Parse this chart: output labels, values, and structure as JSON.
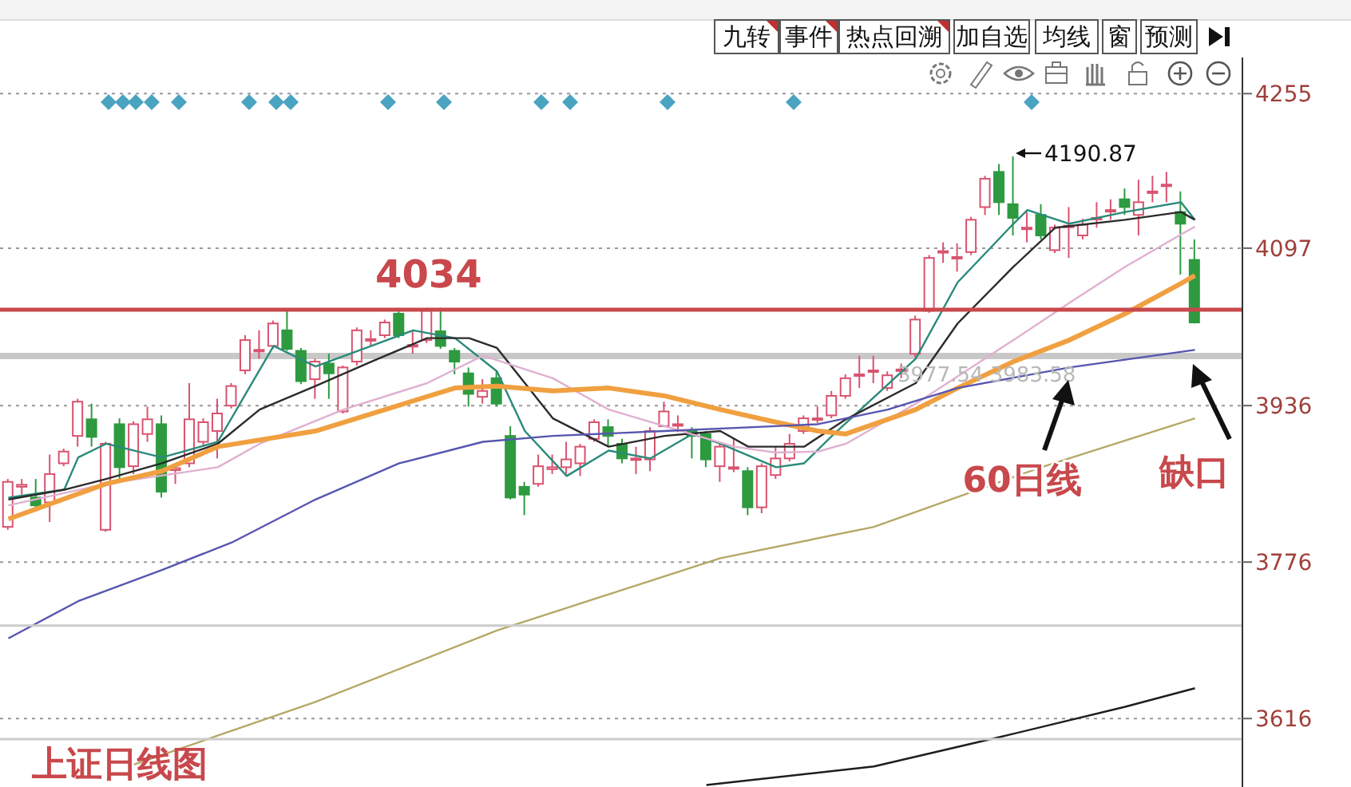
{
  "chart_data": {
    "type": "candlestick",
    "title": "上证日线图",
    "categories": [
      null,
      null,
      null,
      null,
      null,
      null,
      null,
      null,
      null,
      null,
      null,
      null,
      null,
      null,
      null,
      null,
      null,
      null,
      null,
      null,
      null,
      null,
      null,
      null,
      null,
      null,
      null,
      null,
      null,
      null,
      null,
      null,
      null,
      null,
      null,
      null,
      null,
      null,
      null,
      null,
      null,
      null,
      null,
      null,
      null,
      null,
      null,
      null,
      null,
      null,
      null,
      null,
      null,
      null,
      null,
      null,
      null,
      null,
      null,
      null,
      null,
      null,
      null,
      null,
      null,
      null,
      null,
      null,
      null,
      null,
      null,
      null,
      null,
      null,
      null,
      null,
      null,
      null,
      null,
      null,
      null,
      null,
      null,
      null,
      null,
      null
    ],
    "ohlc": [
      [
        3812,
        3861,
        3809,
        3858
      ],
      [
        3853,
        3861,
        3845,
        3855
      ],
      [
        3842,
        3861,
        3832,
        3834
      ],
      [
        3837,
        3886,
        3817,
        3866
      ],
      [
        3877,
        3892,
        3874,
        3889
      ],
      [
        3905,
        3943,
        3894,
        3940
      ],
      [
        3922,
        3938,
        3894,
        3904
      ],
      [
        3809,
        3899,
        3807,
        3897
      ],
      [
        3917,
        3923,
        3861,
        3873
      ],
      [
        3874,
        3920,
        3866,
        3917
      ],
      [
        3907,
        3935,
        3899,
        3922
      ],
      [
        3917,
        3926,
        3842,
        3848
      ],
      [
        3870,
        3877,
        3856,
        3872
      ],
      [
        3877,
        3959,
        3873,
        3922
      ],
      [
        3899,
        3923,
        3894,
        3919
      ],
      [
        3910,
        3943,
        3882,
        3928
      ],
      [
        3936,
        3959,
        3933,
        3956
      ],
      [
        3972,
        4008,
        3968,
        4003
      ],
      [
        3992,
        4013,
        3984,
        3993
      ],
      [
        3997,
        4023,
        3994,
        4020
      ],
      [
        4013,
        4033,
        3992,
        3994
      ],
      [
        3992,
        3995,
        3958,
        3961
      ],
      [
        3963,
        3984,
        3943,
        3981
      ],
      [
        3979,
        3989,
        3943,
        3969
      ],
      [
        3930,
        3977,
        3928,
        3975
      ],
      [
        3981,
        4016,
        3977,
        4013
      ],
      [
        4003,
        4013,
        3997,
        4004
      ],
      [
        4008,
        4024,
        4005,
        4021
      ],
      [
        4030,
        4036,
        4005,
        4008
      ],
      [
        3997,
        4012,
        3989,
        3998
      ],
      [
        4003,
        4036,
        4000,
        4033
      ],
      [
        4012,
        4036,
        3994,
        3997
      ],
      [
        3992,
        3995,
        3968,
        3981
      ],
      [
        3969,
        3975,
        3935,
        3948
      ],
      [
        3945,
        3963,
        3938,
        3951
      ],
      [
        3964,
        3971,
        3935,
        3938
      ],
      [
        3905,
        3915,
        3840,
        3842
      ],
      [
        3853,
        3858,
        3824,
        3845
      ],
      [
        3856,
        3886,
        3853,
        3874
      ],
      [
        3871,
        3886,
        3866,
        3873
      ],
      [
        3873,
        3899,
        3866,
        3881
      ],
      [
        3877,
        3897,
        3864,
        3894
      ],
      [
        3902,
        3922,
        3899,
        3919
      ],
      [
        3914,
        3922,
        3894,
        3905
      ],
      [
        3897,
        3902,
        3877,
        3882
      ],
      [
        3881,
        3894,
        3866,
        3882
      ],
      [
        3881,
        3914,
        3869,
        3910
      ],
      [
        3915,
        3940,
        3914,
        3930
      ],
      [
        3916,
        3926,
        3909,
        3917
      ],
      [
        3910,
        3914,
        3882,
        3905
      ],
      [
        3907,
        3910,
        3873,
        3881
      ],
      [
        3874,
        3897,
        3858,
        3894
      ],
      [
        3872,
        3902,
        3868,
        3873
      ],
      [
        3869,
        3873,
        3824,
        3832
      ],
      [
        3832,
        3877,
        3826,
        3874
      ],
      [
        3865,
        3894,
        3861,
        3882
      ],
      [
        3882,
        3907,
        3879,
        3897
      ],
      [
        3910,
        3926,
        3907,
        3923
      ],
      [
        3922,
        3935,
        3918,
        3923
      ],
      [
        3926,
        3951,
        3923,
        3946
      ],
      [
        3946,
        3968,
        3943,
        3964
      ],
      [
        3967,
        3987,
        3954,
        3968
      ],
      [
        3971,
        3987,
        3959,
        3972
      ],
      [
        3954,
        3971,
        3951,
        3967
      ],
      [
        3972,
        3979,
        3964,
        3973
      ],
      [
        3989,
        4028,
        3985,
        4024
      ],
      [
        4033,
        4090,
        4031,
        4087
      ],
      [
        4093,
        4103,
        4082,
        4094
      ],
      [
        4087,
        4102,
        4073,
        4088
      ],
      [
        4093,
        4129,
        4090,
        4126
      ],
      [
        4139,
        4171,
        4131,
        4168
      ],
      [
        4175,
        4183,
        4131,
        4144
      ],
      [
        4142,
        4190.87,
        4110,
        4128
      ],
      [
        4117,
        4134,
        4103,
        4118
      ],
      [
        4131,
        4142,
        4106,
        4110
      ],
      [
        4095,
        4121,
        4092,
        4118
      ],
      [
        4119,
        4139,
        4087,
        4120
      ],
      [
        4110,
        4127,
        4106,
        4121
      ],
      [
        4127,
        4144,
        4118,
        4128
      ],
      [
        4135,
        4147,
        4126,
        4136
      ],
      [
        4147,
        4158,
        4131,
        4139
      ],
      [
        4131,
        4167,
        4110,
        4144
      ],
      [
        4154,
        4171,
        4144,
        4155
      ],
      [
        4161,
        4175,
        4144,
        4162
      ],
      [
        4134,
        4155,
        4070,
        4122
      ],
      [
        4085,
        4106,
        4020,
        4021
      ]
    ],
    "colors": [
      "#d9536f",
      "#d9536f",
      "#2e9a40",
      "#d9536f",
      "#d9536f",
      "#d9536f",
      "#2e9a40",
      "#d9536f",
      "#2e9a40",
      "#d9536f",
      "#d9536f",
      "#2e9a40",
      "#d9536f",
      "#d9536f",
      "#d9536f",
      "#d9536f",
      "#d9536f",
      "#d9536f",
      "#d9536f",
      "#d9536f",
      "#2e9a40",
      "#2e9a40",
      "#d9536f",
      "#2e9a40",
      "#d9536f",
      "#d9536f",
      "#d9536f",
      "#d9536f",
      "#2e9a40",
      "#d9536f",
      "#d9536f",
      "#2e9a40",
      "#2e9a40",
      "#2e9a40",
      "#d9536f",
      "#2e9a40",
      "#2e9a40",
      "#2e9a40",
      "#d9536f",
      "#d9536f",
      "#d9536f",
      "#d9536f",
      "#d9536f",
      "#2e9a40",
      "#2e9a40",
      "#d9536f",
      "#d9536f",
      "#d9536f",
      "#d9536f",
      "#2e9a40",
      "#2e9a40",
      "#d9536f",
      "#d9536f",
      "#2e9a40",
      "#d9536f",
      "#d9536f",
      "#d9536f",
      "#d9536f",
      "#d9536f",
      "#d9536f",
      "#d9536f",
      "#d9536f",
      "#d9536f",
      "#d9536f",
      "#d9536f",
      "#d9536f",
      "#d9536f",
      "#d9536f",
      "#d9536f",
      "#d9536f",
      "#d9536f",
      "#2e9a40",
      "#2e9a40",
      "#d9536f",
      "#2e9a40",
      "#d9536f",
      "#d9536f",
      "#d9536f",
      "#d9536f",
      "#d9536f",
      "#2e9a40",
      "#d9536f",
      "#d9536f",
      "#d9536f",
      "#2e9a40",
      "#2e9a40"
    ],
    "series": [
      {
        "type": "line",
        "color": "#2a8a7a",
        "values": [
          3842,
          null,
          null,
          null,
          3850,
          3883,
          null,
          3897,
          null,
          null,
          null,
          3883,
          null,
          null,
          null,
          3899,
          null,
          3948,
          null,
          3997,
          null,
          null,
          3976,
          null,
          null,
          null,
          3997,
          null,
          null,
          4013,
          null,
          null,
          4005,
          null,
          null,
          3971,
          null,
          3910,
          null,
          null,
          3864,
          null,
          null,
          3890,
          null,
          null,
          3882,
          null,
          null,
          3907,
          null,
          3897,
          null,
          null,
          null,
          3873,
          null,
          3877,
          null,
          3905,
          null,
          null,
          null,
          null,
          null,
          3984,
          null,
          null,
          4062,
          null,
          null,
          null,
          4122,
          4136,
          null,
          null,
          4122,
          null,
          null,
          null,
          4134,
          null,
          null,
          null,
          4144,
          4126
        ]
      },
      {
        "type": "line",
        "color": "#2b2b2b",
        "values": [
          3840,
          null,
          null,
          null,
          3850,
          null,
          null,
          3861,
          null,
          null,
          null,
          3877,
          null,
          null,
          null,
          3897,
          null,
          null,
          3932,
          null,
          null,
          null,
          3956,
          null,
          null,
          null,
          3981,
          null,
          null,
          null,
          4005,
          null,
          null,
          4005,
          null,
          3995,
          null,
          3959,
          null,
          3923,
          null,
          null,
          null,
          3894,
          null,
          null,
          null,
          3905,
          null,
          null,
          null,
          3910,
          null,
          3894,
          null,
          null,
          null,
          3894,
          null,
          null,
          3922,
          null,
          null,
          null,
          null,
          3959,
          null,
          null,
          4020,
          null,
          null,
          null,
          4078,
          null,
          null,
          4118,
          null,
          null,
          null,
          null,
          4126,
          null,
          null,
          null,
          4134,
          4126
        ]
      },
      {
        "type": "line",
        "color": "#e0b0d0",
        "values": [
          3834,
          null,
          null,
          null,
          null,
          null,
          null,
          3856,
          null,
          null,
          null,
          null,
          null,
          null,
          null,
          3873,
          null,
          null,
          3897,
          null,
          null,
          null,
          null,
          null,
          3932,
          null,
          null,
          null,
          null,
          null,
          3959,
          null,
          null,
          null,
          3987,
          null,
          null,
          null,
          null,
          3964,
          null,
          null,
          null,
          3932,
          null,
          null,
          null,
          3915,
          null,
          null,
          null,
          null,
          3894,
          null,
          null,
          3888,
          null,
          null,
          3889,
          null,
          3897,
          null,
          null,
          null,
          null,
          3938,
          null,
          null,
          null,
          null,
          null,
          null,
          4003,
          null,
          null,
          null,
          4041,
          null,
          null,
          null,
          4078,
          null,
          null,
          null,
          4111,
          4119
        ]
      },
      {
        "type": "line",
        "color": "#f0a040",
        "values": [
          3820,
          null,
          null,
          null,
          null,
          null,
          null,
          3856,
          null,
          null,
          null,
          3869,
          null,
          null,
          null,
          3894,
          null,
          null,
          null,
          null,
          null,
          null,
          3910,
          null,
          null,
          null,
          null,
          null,
          null,
          null,
          null,
          null,
          3954,
          null,
          null,
          3956,
          null,
          null,
          null,
          3951,
          null,
          null,
          null,
          3954,
          null,
          null,
          null,
          3946,
          null,
          null,
          null,
          3932,
          null,
          null,
          null,
          3919,
          null,
          null,
          3910,
          null,
          3907,
          null,
          null,
          null,
          null,
          3932,
          null,
          null,
          3954,
          null,
          null,
          null,
          3981,
          null,
          null,
          null,
          4003,
          null,
          null,
          null,
          4030,
          null,
          null,
          null,
          4061,
          4069
        ]
      },
      {
        "type": "line",
        "color": "#5656b0",
        "values": [
          3698,
          null,
          null,
          null,
          null,
          3736,
          null,
          null,
          null,
          null,
          null,
          3768,
          null,
          null,
          null,
          null,
          3796,
          null,
          null,
          null,
          null,
          null,
          3840,
          null,
          null,
          null,
          null,
          null,
          3877,
          null,
          null,
          null,
          null,
          null,
          3899,
          null,
          null,
          null,
          null,
          3905,
          null,
          null,
          null,
          null,
          null,
          null,
          null,
          3910,
          null,
          null,
          null,
          null,
          null,
          null,
          null,
          3915,
          null,
          null,
          3917,
          null,
          null,
          null,
          null,
          3932,
          null,
          null,
          null,
          null,
          3954,
          null,
          null,
          null,
          null,
          null,
          null,
          null,
          3975,
          null,
          null,
          null,
          null,
          null,
          null,
          null,
          null,
          3993
        ]
      },
      {
        "type": "line",
        "color": "#b5a866",
        "values": [
          null,
          null,
          null,
          null,
          null,
          null,
          null,
          null,
          null,
          3569,
          null,
          null,
          null,
          null,
          null,
          null,
          null,
          null,
          null,
          null,
          null,
          null,
          3633,
          null,
          null,
          null,
          null,
          null,
          null,
          null,
          null,
          null,
          null,
          null,
          null,
          3706,
          null,
          null,
          null,
          null,
          null,
          null,
          null,
          null,
          null,
          null,
          null,
          null,
          null,
          null,
          null,
          3780,
          null,
          null,
          null,
          null,
          null,
          null,
          null,
          null,
          null,
          null,
          3812,
          null,
          null,
          null,
          null,
          null,
          null,
          null,
          null,
          null,
          null,
          null,
          3873,
          null,
          null,
          null,
          null,
          null,
          null,
          null,
          null,
          null,
          null,
          3923
        ]
      },
      {
        "type": "line",
        "color": "#1e1e1e",
        "values": [
          null,
          null,
          null,
          null,
          null,
          null,
          null,
          null,
          null,
          null,
          null,
          null,
          null,
          null,
          null,
          null,
          null,
          null,
          null,
          null,
          null,
          null,
          null,
          null,
          null,
          null,
          null,
          null,
          null,
          null,
          null,
          null,
          null,
          null,
          null,
          null,
          null,
          null,
          null,
          null,
          null,
          null,
          null,
          null,
          null,
          null,
          null,
          null,
          null,
          null,
          3548,
          null,
          null,
          null,
          null,
          null,
          null,
          null,
          null,
          null,
          null,
          null,
          3567,
          null,
          null,
          null,
          null,
          null,
          null,
          null,
          null,
          3597,
          null,
          null,
          null,
          null,
          null,
          null,
          null,
          null,
          3628,
          null,
          null,
          null,
          null,
          3647
        ]
      }
    ],
    "marker": "none",
    "ylim": [
      3546,
      4292
    ],
    "yticks": [
      3616,
      3776,
      3936,
      4097,
      4255
    ],
    "grid": "y",
    "tick_labels": "y",
    "ref_lines": [
      {
        "axis": "y",
        "value": 4034,
        "label": "4034",
        "color": "#c8484c"
      },
      {
        "axis": "y",
        "value": 3711,
        "color": "#cccccc"
      },
      {
        "axis": "y",
        "value": 3595,
        "color": "#cccccc"
      }
    ],
    "bands": [
      {
        "axis": "y",
        "from": 3983.58,
        "to": 3990,
        "label": "3977.54  3983.58",
        "color": "#c8c8c8"
      }
    ],
    "annotations": [
      "4190.87",
      "60日线",
      "缺口",
      "九转",
      "事件",
      "热点回溯",
      "加自选",
      "均线",
      "窗",
      "预测"
    ]
  }
}
